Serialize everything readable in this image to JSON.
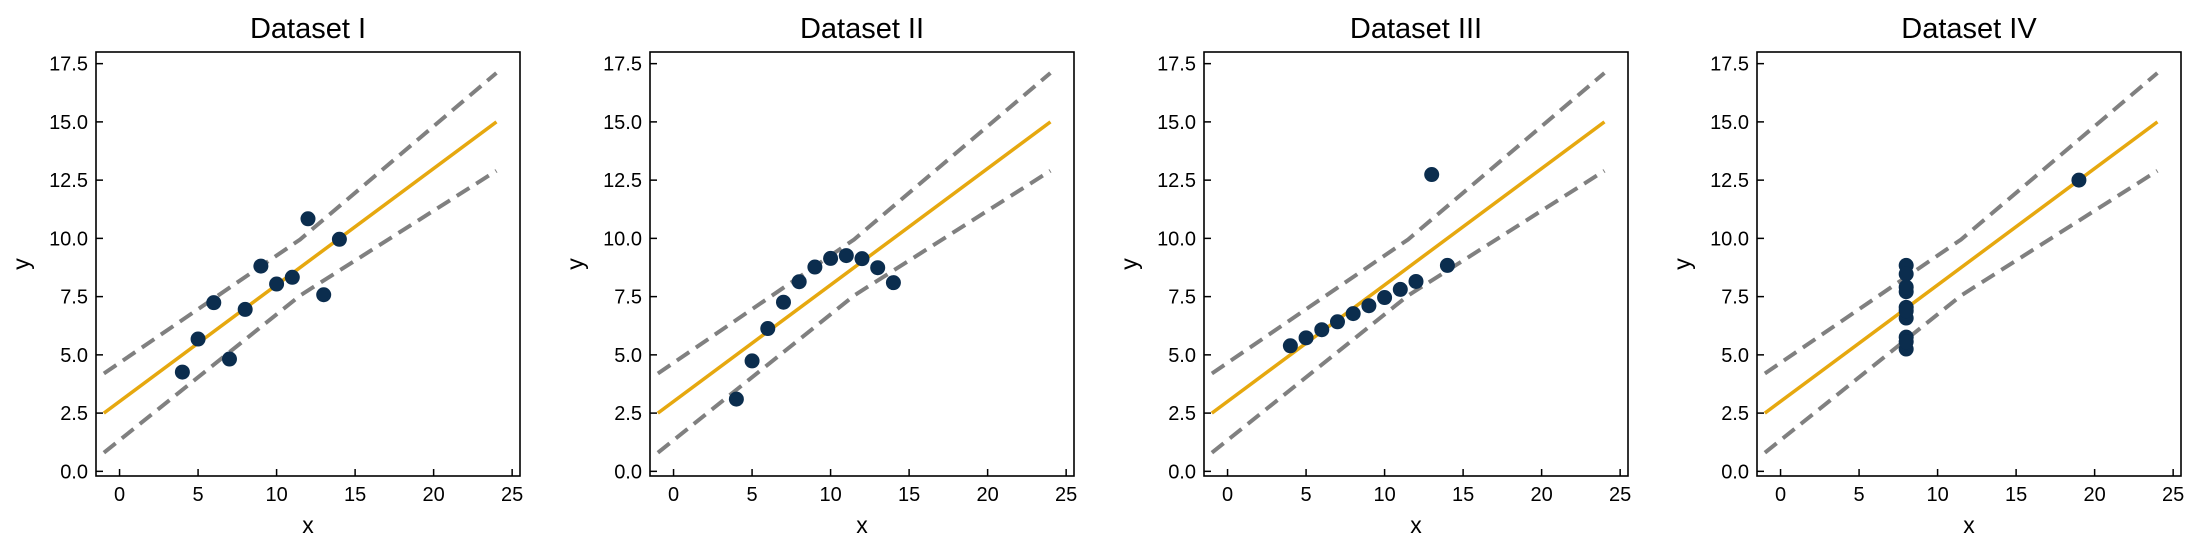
{
  "chart_data": [
    {
      "type": "scatter",
      "title": "Dataset I",
      "xlabel": "x",
      "ylabel": "y",
      "xlim": [
        -1.5,
        25.5
      ],
      "ylim": [
        -0.2,
        18.0
      ],
      "xticks": [
        0,
        5,
        10,
        15,
        20,
        25
      ],
      "yticks": [
        0.0,
        2.5,
        5.0,
        7.5,
        10.0,
        12.5,
        15.0,
        17.5
      ],
      "xtick_labels": [
        "0",
        "5",
        "10",
        "15",
        "20",
        "25"
      ],
      "ytick_labels": [
        "0.0",
        "2.5",
        "5.0",
        "7.5",
        "10.0",
        "12.5",
        "15.0",
        "17.5"
      ],
      "grid": false,
      "points": {
        "x": [
          10,
          8,
          13,
          9,
          11,
          14,
          6,
          4,
          12,
          7,
          5
        ],
        "y": [
          8.04,
          6.95,
          7.58,
          8.81,
          8.33,
          9.96,
          7.24,
          4.26,
          10.84,
          4.82,
          5.68
        ]
      },
      "fit_line": {
        "x": [
          -1,
          24
        ],
        "y": [
          2.5,
          15.0
        ]
      },
      "bands": [
        {
          "x": [
            -1,
            11.5,
            24
          ],
          "y": [
            4.2,
            9.95,
            17.1
          ]
        },
        {
          "x": [
            -1,
            11.5,
            24
          ],
          "y": [
            0.8,
            7.55,
            12.9
          ]
        }
      ],
      "colors": {
        "points": "#0b2d4e",
        "fit": "#e6a80f",
        "band": "#808080"
      }
    },
    {
      "type": "scatter",
      "title": "Dataset II",
      "xlabel": "x",
      "ylabel": "y",
      "xlim": [
        -1.5,
        25.5
      ],
      "ylim": [
        -0.2,
        18.0
      ],
      "xticks": [
        0,
        5,
        10,
        15,
        20,
        25
      ],
      "yticks": [
        0.0,
        2.5,
        5.0,
        7.5,
        10.0,
        12.5,
        15.0,
        17.5
      ],
      "xtick_labels": [
        "0",
        "5",
        "10",
        "15",
        "20",
        "25"
      ],
      "ytick_labels": [
        "0.0",
        "2.5",
        "5.0",
        "7.5",
        "10.0",
        "12.5",
        "15.0",
        "17.5"
      ],
      "grid": false,
      "points": {
        "x": [
          10,
          8,
          13,
          9,
          11,
          14,
          6,
          4,
          12,
          7,
          5
        ],
        "y": [
          9.14,
          8.14,
          8.74,
          8.77,
          9.26,
          8.1,
          6.13,
          3.1,
          9.13,
          7.26,
          4.74
        ]
      },
      "fit_line": {
        "x": [
          -1,
          24
        ],
        "y": [
          2.5,
          15.0
        ]
      },
      "bands": [
        {
          "x": [
            -1,
            11.5,
            24
          ],
          "y": [
            4.2,
            9.95,
            17.1
          ]
        },
        {
          "x": [
            -1,
            11.5,
            24
          ],
          "y": [
            0.8,
            7.55,
            12.9
          ]
        }
      ],
      "colors": {
        "points": "#0b2d4e",
        "fit": "#e6a80f",
        "band": "#808080"
      }
    },
    {
      "type": "scatter",
      "title": "Dataset III",
      "xlabel": "x",
      "ylabel": "y",
      "xlim": [
        -1.5,
        25.5
      ],
      "ylim": [
        -0.2,
        18.0
      ],
      "xticks": [
        0,
        5,
        10,
        15,
        20,
        25
      ],
      "yticks": [
        0.0,
        2.5,
        5.0,
        7.5,
        10.0,
        12.5,
        15.0,
        17.5
      ],
      "xtick_labels": [
        "0",
        "5",
        "10",
        "15",
        "20",
        "25"
      ],
      "ytick_labels": [
        "0.0",
        "2.5",
        "5.0",
        "7.5",
        "10.0",
        "12.5",
        "15.0",
        "17.5"
      ],
      "grid": false,
      "points": {
        "x": [
          10,
          8,
          13,
          9,
          11,
          14,
          6,
          4,
          12,
          7,
          5
        ],
        "y": [
          7.46,
          6.77,
          12.74,
          7.11,
          7.81,
          8.84,
          6.08,
          5.39,
          8.15,
          6.42,
          5.73
        ]
      },
      "fit_line": {
        "x": [
          -1,
          24
        ],
        "y": [
          2.5,
          15.0
        ]
      },
      "bands": [
        {
          "x": [
            -1,
            11.5,
            24
          ],
          "y": [
            4.2,
            9.95,
            17.1
          ]
        },
        {
          "x": [
            -1,
            11.5,
            24
          ],
          "y": [
            0.8,
            7.55,
            12.9
          ]
        }
      ],
      "colors": {
        "points": "#0b2d4e",
        "fit": "#e6a80f",
        "band": "#808080"
      }
    },
    {
      "type": "scatter",
      "title": "Dataset IV",
      "xlabel": "x",
      "ylabel": "y",
      "xlim": [
        -1.5,
        25.5
      ],
      "ylim": [
        -0.2,
        18.0
      ],
      "xticks": [
        0,
        5,
        10,
        15,
        20,
        25
      ],
      "yticks": [
        0.0,
        2.5,
        5.0,
        7.5,
        10.0,
        12.5,
        15.0,
        17.5
      ],
      "xtick_labels": [
        "0",
        "5",
        "10",
        "15",
        "20",
        "25"
      ],
      "ytick_labels": [
        "0.0",
        "2.5",
        "5.0",
        "7.5",
        "10.0",
        "12.5",
        "15.0",
        "17.5"
      ],
      "grid": false,
      "points": {
        "x": [
          8,
          8,
          8,
          8,
          8,
          8,
          8,
          19,
          8,
          8,
          8
        ],
        "y": [
          6.58,
          5.76,
          7.71,
          8.84,
          8.47,
          7.04,
          5.25,
          12.5,
          5.56,
          7.91,
          6.89
        ]
      },
      "fit_line": {
        "x": [
          -1,
          24
        ],
        "y": [
          2.5,
          15.0
        ]
      },
      "bands": [
        {
          "x": [
            -1,
            11.5,
            24
          ],
          "y": [
            4.2,
            9.95,
            17.1
          ]
        },
        {
          "x": [
            -1,
            11.5,
            24
          ],
          "y": [
            0.8,
            7.55,
            12.9
          ]
        }
      ],
      "colors": {
        "points": "#0b2d4e",
        "fit": "#e6a80f",
        "band": "#808080"
      }
    }
  ]
}
